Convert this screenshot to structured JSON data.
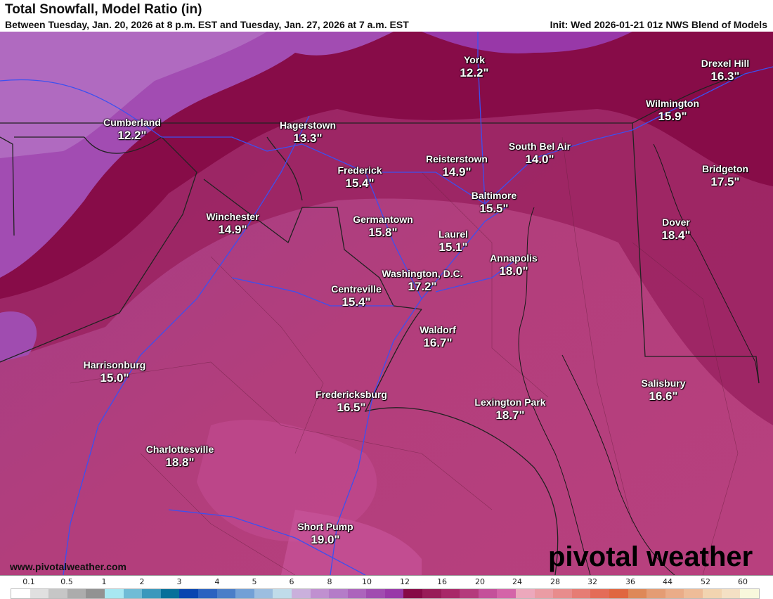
{
  "header": {
    "title": "Total Snowfall, Model Ratio (in)",
    "subtitle": "Between Tuesday, Jan. 20, 2026 at 8 p.m. EST and Tuesday, Jan. 27, 2026 at 7 a.m. EST",
    "init": "Init: Wed 2026-01-21 01z NWS Blend of Models"
  },
  "cities": [
    {
      "name": "York",
      "value": "12.2\""
    },
    {
      "name": "Drexel Hill",
      "value": "16.3\""
    },
    {
      "name": "Cumberland",
      "value": "12.2\""
    },
    {
      "name": "Hagerstown",
      "value": "13.3\""
    },
    {
      "name": "Wilmington",
      "value": "15.9\""
    },
    {
      "name": "South Bel Air",
      "value": "14.0\""
    },
    {
      "name": "Reisterstown",
      "value": "14.9\""
    },
    {
      "name": "Frederick",
      "value": "15.4\""
    },
    {
      "name": "Bridgeton",
      "value": "17.5\""
    },
    {
      "name": "Baltimore",
      "value": "15.5\""
    },
    {
      "name": "Winchester",
      "value": "14.9\""
    },
    {
      "name": "Germantown",
      "value": "15.8\""
    },
    {
      "name": "Dover",
      "value": "18.4\""
    },
    {
      "name": "Laurel",
      "value": "15.1\""
    },
    {
      "name": "Annapolis",
      "value": "18.0\""
    },
    {
      "name": "Washington, D.C.",
      "value": "17.2\""
    },
    {
      "name": "Centreville",
      "value": "15.4\""
    },
    {
      "name": "Waldorf",
      "value": "16.7\""
    },
    {
      "name": "Harrisonburg",
      "value": "15.0\""
    },
    {
      "name": "Salisbury",
      "value": "16.6\""
    },
    {
      "name": "Fredericksburg",
      "value": "16.5\""
    },
    {
      "name": "Lexington Park",
      "value": "18.7\""
    },
    {
      "name": "Charlottesville",
      "value": "18.8\""
    },
    {
      "name": "Short Pump",
      "value": "19.0\""
    }
  ],
  "footer": {
    "website": "www.pivotalweather.com",
    "logo": "pivotal weather"
  },
  "legend": {
    "labels": [
      "0.1",
      "0.5",
      "1",
      "2",
      "3",
      "4",
      "5",
      "6",
      "8",
      "10",
      "12",
      "16",
      "20",
      "24",
      "28",
      "32",
      "36",
      "44",
      "52",
      "60"
    ],
    "colors": [
      "#ffffff",
      "#e0e0e0",
      "#c6c6c6",
      "#acacac",
      "#929292",
      "#a8e8f2",
      "#70bcd6",
      "#3a98bc",
      "#06709a",
      "#0845b0",
      "#2a62c0",
      "#4a7ec8",
      "#72a0d6",
      "#9cbee0",
      "#c0dcea",
      "#cab0dc",
      "#c090d0",
      "#b47cc8",
      "#ac64bc",
      "#a04cb0",
      "#9838a8",
      "#860a46",
      "#981c58",
      "#a82868",
      "#b43a7c",
      "#c4509a",
      "#d464a8",
      "#eca8bc",
      "#ea9ca4",
      "#e88c8c",
      "#e67c74",
      "#e46c58",
      "#e06640",
      "#de8858",
      "#e49c74",
      "#eaac88",
      "#eebc98",
      "#f2d4b0",
      "#f4e0c4",
      "#f8f8dc"
    ]
  }
}
